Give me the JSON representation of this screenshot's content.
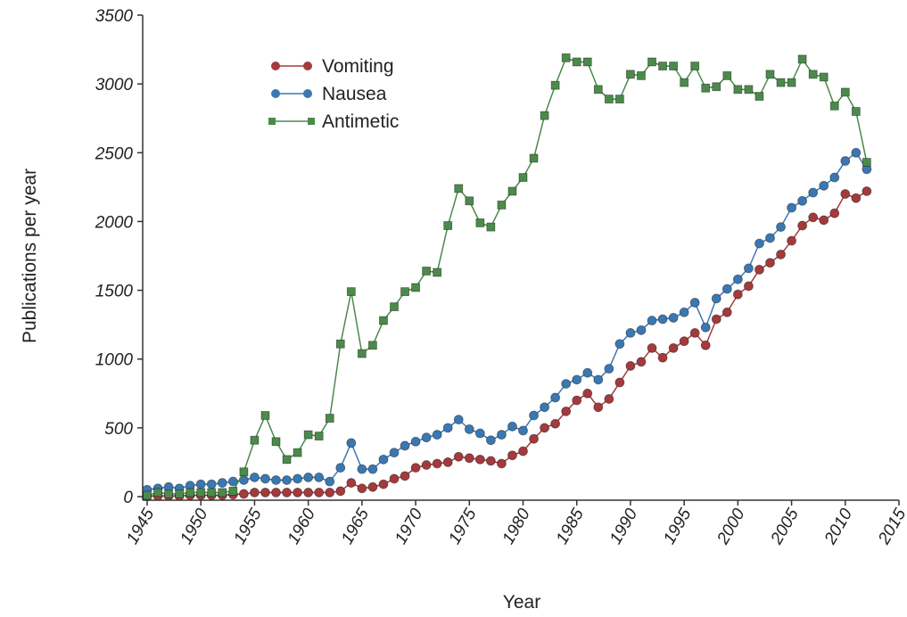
{
  "chart_data": {
    "type": "line",
    "x_label": "Year",
    "y_label": "Publications per year",
    "x": [
      1945,
      1946,
      1947,
      1948,
      1949,
      1950,
      1951,
      1952,
      1953,
      1954,
      1955,
      1956,
      1957,
      1958,
      1959,
      1960,
      1961,
      1962,
      1963,
      1964,
      1965,
      1966,
      1967,
      1968,
      1969,
      1970,
      1971,
      1972,
      1973,
      1974,
      1975,
      1976,
      1977,
      1978,
      1979,
      1980,
      1981,
      1982,
      1983,
      1984,
      1985,
      1986,
      1987,
      1988,
      1989,
      1990,
      1991,
      1992,
      1993,
      1994,
      1995,
      1996,
      1997,
      1998,
      1999,
      2000,
      2001,
      2002,
      2003,
      2004,
      2005,
      2006,
      2007,
      2008,
      2009,
      2010,
      2011,
      2012
    ],
    "series": [
      {
        "name": "Vomiting",
        "color": "#a33a3c",
        "marker": "circle",
        "values": [
          5,
          5,
          5,
          5,
          10,
          10,
          10,
          10,
          15,
          20,
          30,
          30,
          30,
          30,
          30,
          30,
          30,
          30,
          40,
          100,
          60,
          70,
          90,
          130,
          150,
          210,
          230,
          240,
          250,
          290,
          280,
          270,
          260,
          240,
          300,
          330,
          420,
          500,
          530,
          620,
          700,
          750,
          650,
          710,
          830,
          950,
          980,
          1080,
          1010,
          1080,
          1130,
          1190,
          1100,
          1290,
          1340,
          1470,
          1530,
          1650,
          1700,
          1760,
          1860,
          1970,
          2030,
          2010,
          2060,
          2200,
          2170,
          2220
        ]
      },
      {
        "name": "Nausea",
        "color": "#3a78b2",
        "marker": "circle",
        "values": [
          50,
          60,
          70,
          60,
          80,
          90,
          90,
          100,
          110,
          120,
          140,
          130,
          120,
          120,
          130,
          140,
          140,
          110,
          210,
          390,
          200,
          200,
          270,
          320,
          370,
          400,
          430,
          450,
          500,
          560,
          490,
          460,
          410,
          450,
          510,
          480,
          590,
          650,
          720,
          820,
          850,
          900,
          850,
          930,
          1110,
          1190,
          1210,
          1280,
          1290,
          1300,
          1340,
          1410,
          1230,
          1440,
          1510,
          1580,
          1660,
          1840,
          1880,
          1960,
          2100,
          2150,
          2210,
          2260,
          2320,
          2440,
          2500,
          2380
        ]
      },
      {
        "name": "Antimetic",
        "color": "#4b8a4b",
        "marker": "square",
        "values": [
          10,
          30,
          20,
          20,
          30,
          30,
          30,
          30,
          40,
          180,
          410,
          590,
          400,
          270,
          320,
          450,
          440,
          570,
          1110,
          1490,
          1040,
          1100,
          1280,
          1380,
          1490,
          1520,
          1640,
          1630,
          1970,
          2240,
          2150,
          1990,
          1960,
          2120,
          2220,
          2320,
          2460,
          2770,
          2990,
          3190,
          3160,
          3160,
          2960,
          2890,
          2890,
          3070,
          3060,
          3160,
          3130,
          3130,
          3010,
          3130,
          2970,
          2980,
          3060,
          2960,
          2960,
          2910,
          3070,
          3010,
          3010,
          3180,
          3070,
          3050,
          2840,
          2940,
          2800,
          2430
        ]
      }
    ],
    "xlim": [
      1945,
      2015
    ],
    "xticks": [
      1945,
      1950,
      1955,
      1960,
      1965,
      1970,
      1975,
      1980,
      1985,
      1990,
      1995,
      2000,
      2005,
      2010,
      2015
    ],
    "ylim": [
      0,
      3500
    ],
    "yticks": [
      0,
      500,
      1000,
      1500,
      2000,
      2500,
      3000,
      3500
    ],
    "legend": "upper-left"
  }
}
